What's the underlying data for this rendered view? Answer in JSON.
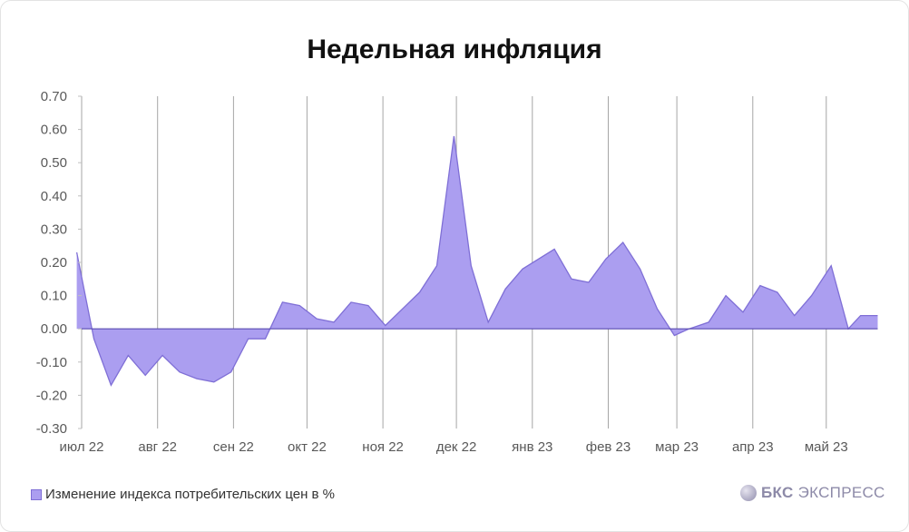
{
  "chart_data": {
    "type": "area",
    "title": "Недельная инфляция",
    "ylim": [
      -0.3,
      0.7
    ],
    "yticks": [
      "0.70",
      "0.60",
      "0.50",
      "0.40",
      "0.30",
      "0.20",
      "0.10",
      "0.00",
      "-0.10",
      "-0.20",
      "-0.30"
    ],
    "xticks": [
      "июл 22",
      "авг 22",
      "сен 22",
      "окт 22",
      "ноя 22",
      "дек 22",
      "янв 23",
      "фев 23",
      "мар 23",
      "апр 23",
      "май 23"
    ],
    "grid": "vertical",
    "legend_position": "bottom-left",
    "colors": {
      "fill": "#ab9ef0",
      "line": "#7f6fd6",
      "grid": "#a6a6a6"
    },
    "series": [
      {
        "name": "Изменение индекса потребительских цен в %",
        "dates": [
          "2022-06-29",
          "2022-07-06",
          "2022-07-13",
          "2022-07-20",
          "2022-07-27",
          "2022-08-03",
          "2022-08-10",
          "2022-08-17",
          "2022-08-24",
          "2022-08-31",
          "2022-09-07",
          "2022-09-14",
          "2022-09-21",
          "2022-09-28",
          "2022-10-05",
          "2022-10-12",
          "2022-10-19",
          "2022-10-26",
          "2022-11-02",
          "2022-11-09",
          "2022-11-16",
          "2022-11-23",
          "2022-11-30",
          "2022-12-07",
          "2022-12-14",
          "2022-12-21",
          "2022-12-28",
          "2023-01-10",
          "2023-01-17",
          "2023-01-24",
          "2023-01-31",
          "2023-02-07",
          "2023-02-14",
          "2023-02-21",
          "2023-02-28",
          "2023-03-06",
          "2023-03-14",
          "2023-03-21",
          "2023-03-28",
          "2023-04-04",
          "2023-04-11",
          "2023-04-18",
          "2023-04-25",
          "2023-05-03",
          "2023-05-10",
          "2023-05-15",
          "2023-05-22"
        ],
        "values": [
          0.23,
          -0.03,
          -0.17,
          -0.08,
          -0.14,
          -0.08,
          -0.13,
          -0.15,
          -0.16,
          -0.13,
          -0.03,
          -0.03,
          0.08,
          0.07,
          0.03,
          0.02,
          0.08,
          0.07,
          0.01,
          0.06,
          0.11,
          0.19,
          0.58,
          0.19,
          0.02,
          0.12,
          0.18,
          0.24,
          0.15,
          0.14,
          0.21,
          0.26,
          0.18,
          0.06,
          -0.02,
          0.0,
          0.02,
          0.1,
          0.05,
          0.13,
          0.11,
          0.04,
          0.1,
          0.19,
          0.0,
          0.04,
          0.04
        ]
      }
    ]
  },
  "legend": {
    "label": "Изменение индекса потребительских цен в %"
  },
  "logo": {
    "bold": "БКС",
    "text": "ЭКСПРЕСС"
  }
}
